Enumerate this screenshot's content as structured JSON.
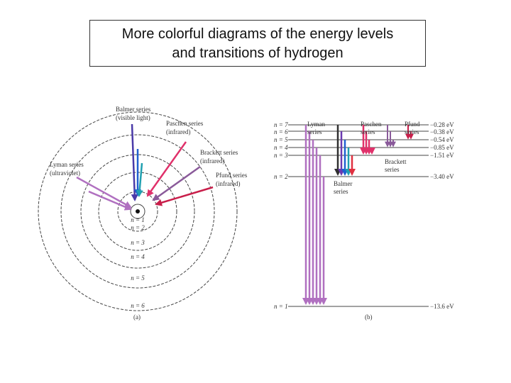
{
  "title": {
    "line1": "More colorful diagrams of the energy levels",
    "line2": "and transitions of hydrogen"
  },
  "orbit_diagram": {
    "panel_label": "(a)",
    "series": [
      {
        "name": "Balmer series",
        "note": "(visible light)",
        "color": "#4a3aa8"
      },
      {
        "name": "Paschen series",
        "note": "(infrared)",
        "color": "#e0306a"
      },
      {
        "name": "Brackett series",
        "note": "(infrared)",
        "color": "#8a5a9a"
      },
      {
        "name": "Pfund series",
        "note": "(infrared)",
        "color": "#c81e4a"
      },
      {
        "name": "Lyman series",
        "note": "(ultraviolet)",
        "color": "#b070c0"
      }
    ],
    "orbit_labels": [
      "n = 1",
      "n = 2",
      "n = 3",
      "n = 4",
      "n = 5",
      "n = 6"
    ]
  },
  "level_diagram": {
    "panel_label": "(b)",
    "levels": [
      {
        "n": "n = 7",
        "energy": "−0.28 eV"
      },
      {
        "n": "n = 6",
        "energy": "−0.38 eV"
      },
      {
        "n": "n = 5",
        "energy": "−0.54 eV"
      },
      {
        "n": "n = 4",
        "energy": "−0.85 eV"
      },
      {
        "n": "n = 3",
        "energy": "−1.51 eV"
      },
      {
        "n": "n = 2",
        "energy": "−3.40 eV"
      },
      {
        "n": "n = 1",
        "energy": "−13.6 eV"
      }
    ],
    "series_labels": {
      "lyman": [
        "Lyman",
        "series"
      ],
      "paschen": [
        "Paschen",
        "series"
      ],
      "pfund": [
        "Pfund",
        "series"
      ],
      "brackett": [
        "Brackett",
        "series"
      ],
      "balmer": [
        "Balmer",
        "series"
      ]
    },
    "colors": {
      "lyman": "#b070c0",
      "balmer": [
        "#303030",
        "#6a3ab0",
        "#2060d0",
        "#20a0b0",
        "#e03040"
      ],
      "paschen": "#e0306a",
      "brackett": "#8a5a9a",
      "pfund": "#c81e4a"
    }
  }
}
